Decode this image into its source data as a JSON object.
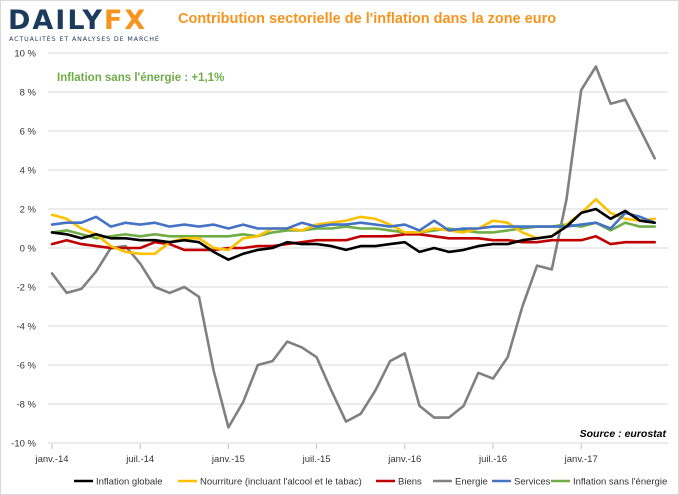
{
  "brand": {
    "name": "DAILY",
    "name_accent": "FX",
    "tagline": "ACTUALITÉS ET ANALYSES DE MARCHÉ"
  },
  "chart_data": {
    "type": "line",
    "title": "Contribution sectorielle de l'inflation dans la zone euro",
    "annotation": "Inflation sans l'énergie : +1,1%",
    "source": "Source : eurostat",
    "xlabel": "",
    "ylabel": "",
    "ylim": [
      -10,
      10
    ],
    "yticks": [
      -10,
      -8,
      -6,
      -4,
      -2,
      0,
      2,
      4,
      6,
      8,
      10
    ],
    "ytick_labels": [
      "-10 %",
      "-8 %",
      "-6 %",
      "-4 %",
      "-2 %",
      "0 %",
      "2 %",
      "4 %",
      "6 %",
      "8 %",
      "10 %"
    ],
    "x": [
      "2014-01",
      "2014-02",
      "2014-03",
      "2014-04",
      "2014-05",
      "2014-06",
      "2014-07",
      "2014-08",
      "2014-09",
      "2014-10",
      "2014-11",
      "2014-12",
      "2015-01",
      "2015-02",
      "2015-03",
      "2015-04",
      "2015-05",
      "2015-06",
      "2015-07",
      "2015-08",
      "2015-09",
      "2015-10",
      "2015-11",
      "2015-12",
      "2016-01",
      "2016-02",
      "2016-03",
      "2016-04",
      "2016-05",
      "2016-06",
      "2016-07",
      "2016-08",
      "2016-09",
      "2016-10",
      "2016-11",
      "2016-12",
      "2017-01",
      "2017-02",
      "2017-03",
      "2017-04",
      "2017-05",
      "2017-06"
    ],
    "xtick_labels": [
      "janv.-14",
      "juil.-14",
      "janv.-15",
      "juil.-15",
      "janv.-16",
      "juil.-16",
      "janv.-17"
    ],
    "grid": "horizontal",
    "legend_position": "bottom",
    "series": [
      {
        "name": "Inflation globale",
        "color": "#000000",
        "values": [
          0.8,
          0.7,
          0.5,
          0.7,
          0.5,
          0.5,
          0.4,
          0.4,
          0.3,
          0.4,
          0.3,
          -0.2,
          -0.6,
          -0.3,
          -0.1,
          0.0,
          0.3,
          0.2,
          0.2,
          0.1,
          -0.1,
          0.1,
          0.1,
          0.2,
          0.3,
          -0.2,
          0.0,
          -0.2,
          -0.1,
          0.1,
          0.2,
          0.2,
          0.4,
          0.5,
          0.6,
          1.1,
          1.8,
          2.0,
          1.5,
          1.9,
          1.4,
          1.3
        ]
      },
      {
        "name": "Nourriture (incluant l'alcool et le tabac)",
        "color": "#ffc000",
        "values": [
          1.7,
          1.5,
          1.0,
          0.7,
          0.1,
          -0.2,
          -0.3,
          -0.3,
          0.3,
          0.5,
          0.5,
          0.0,
          -0.1,
          0.5,
          0.6,
          1.0,
          1.0,
          0.9,
          1.2,
          1.3,
          1.4,
          1.6,
          1.5,
          1.2,
          0.8,
          0.8,
          1.0,
          0.9,
          0.8,
          1.0,
          1.4,
          1.3,
          0.8,
          0.5,
          0.6,
          1.2,
          1.8,
          2.5,
          1.8,
          1.5,
          1.4,
          1.5
        ]
      },
      {
        "name": "Biens",
        "color": "#c00000",
        "values": [
          0.2,
          0.4,
          0.2,
          0.1,
          0.0,
          0.0,
          0.0,
          0.3,
          0.2,
          -0.1,
          -0.1,
          -0.1,
          0.0,
          0.0,
          0.1,
          0.1,
          0.2,
          0.3,
          0.4,
          0.4,
          0.4,
          0.6,
          0.6,
          0.6,
          0.7,
          0.7,
          0.6,
          0.5,
          0.5,
          0.5,
          0.4,
          0.4,
          0.3,
          0.3,
          0.4,
          0.4,
          0.4,
          0.6,
          0.2,
          0.3,
          0.3,
          0.3
        ]
      },
      {
        "name": "Energie",
        "color": "#808080",
        "values": [
          -1.3,
          -2.3,
          -2.1,
          -1.2,
          0.0,
          0.1,
          -0.8,
          -2.0,
          -2.3,
          -2.0,
          -2.5,
          -6.3,
          -9.2,
          -7.9,
          -6.0,
          -5.8,
          -4.8,
          -5.1,
          -5.6,
          -7.3,
          -8.9,
          -8.5,
          -7.3,
          -5.8,
          -5.4,
          -8.1,
          -8.7,
          -8.7,
          -8.1,
          -6.4,
          -6.7,
          -5.6,
          -3.0,
          -0.9,
          -1.1,
          2.5,
          8.1,
          9.3,
          7.4,
          7.6,
          6.1,
          4.6
        ]
      },
      {
        "name": "Services",
        "color": "#4472c4",
        "values": [
          1.2,
          1.3,
          1.3,
          1.6,
          1.1,
          1.3,
          1.2,
          1.3,
          1.1,
          1.2,
          1.1,
          1.2,
          1.0,
          1.2,
          1.0,
          1.0,
          1.0,
          1.3,
          1.1,
          1.2,
          1.2,
          1.3,
          1.2,
          1.1,
          1.2,
          0.9,
          1.4,
          0.9,
          1.0,
          1.0,
          1.1,
          1.1,
          1.1,
          1.1,
          1.1,
          1.1,
          1.2,
          1.3,
          1.0,
          1.8,
          1.6,
          1.3
        ]
      },
      {
        "name": "Inflation sans l'énergie",
        "color": "#70ad47",
        "values": [
          0.8,
          0.9,
          0.7,
          0.5,
          0.6,
          0.7,
          0.6,
          0.7,
          0.6,
          0.6,
          0.6,
          0.6,
          0.6,
          0.7,
          0.6,
          0.8,
          0.9,
          0.9,
          1.0,
          1.0,
          1.1,
          1.0,
          1.0,
          0.9,
          0.8,
          0.8,
          0.9,
          1.0,
          0.9,
          0.8,
          0.8,
          0.9,
          1.0,
          1.1,
          1.1,
          1.2,
          1.1,
          1.3,
          0.9,
          1.3,
          1.1,
          1.1
        ]
      }
    ]
  }
}
